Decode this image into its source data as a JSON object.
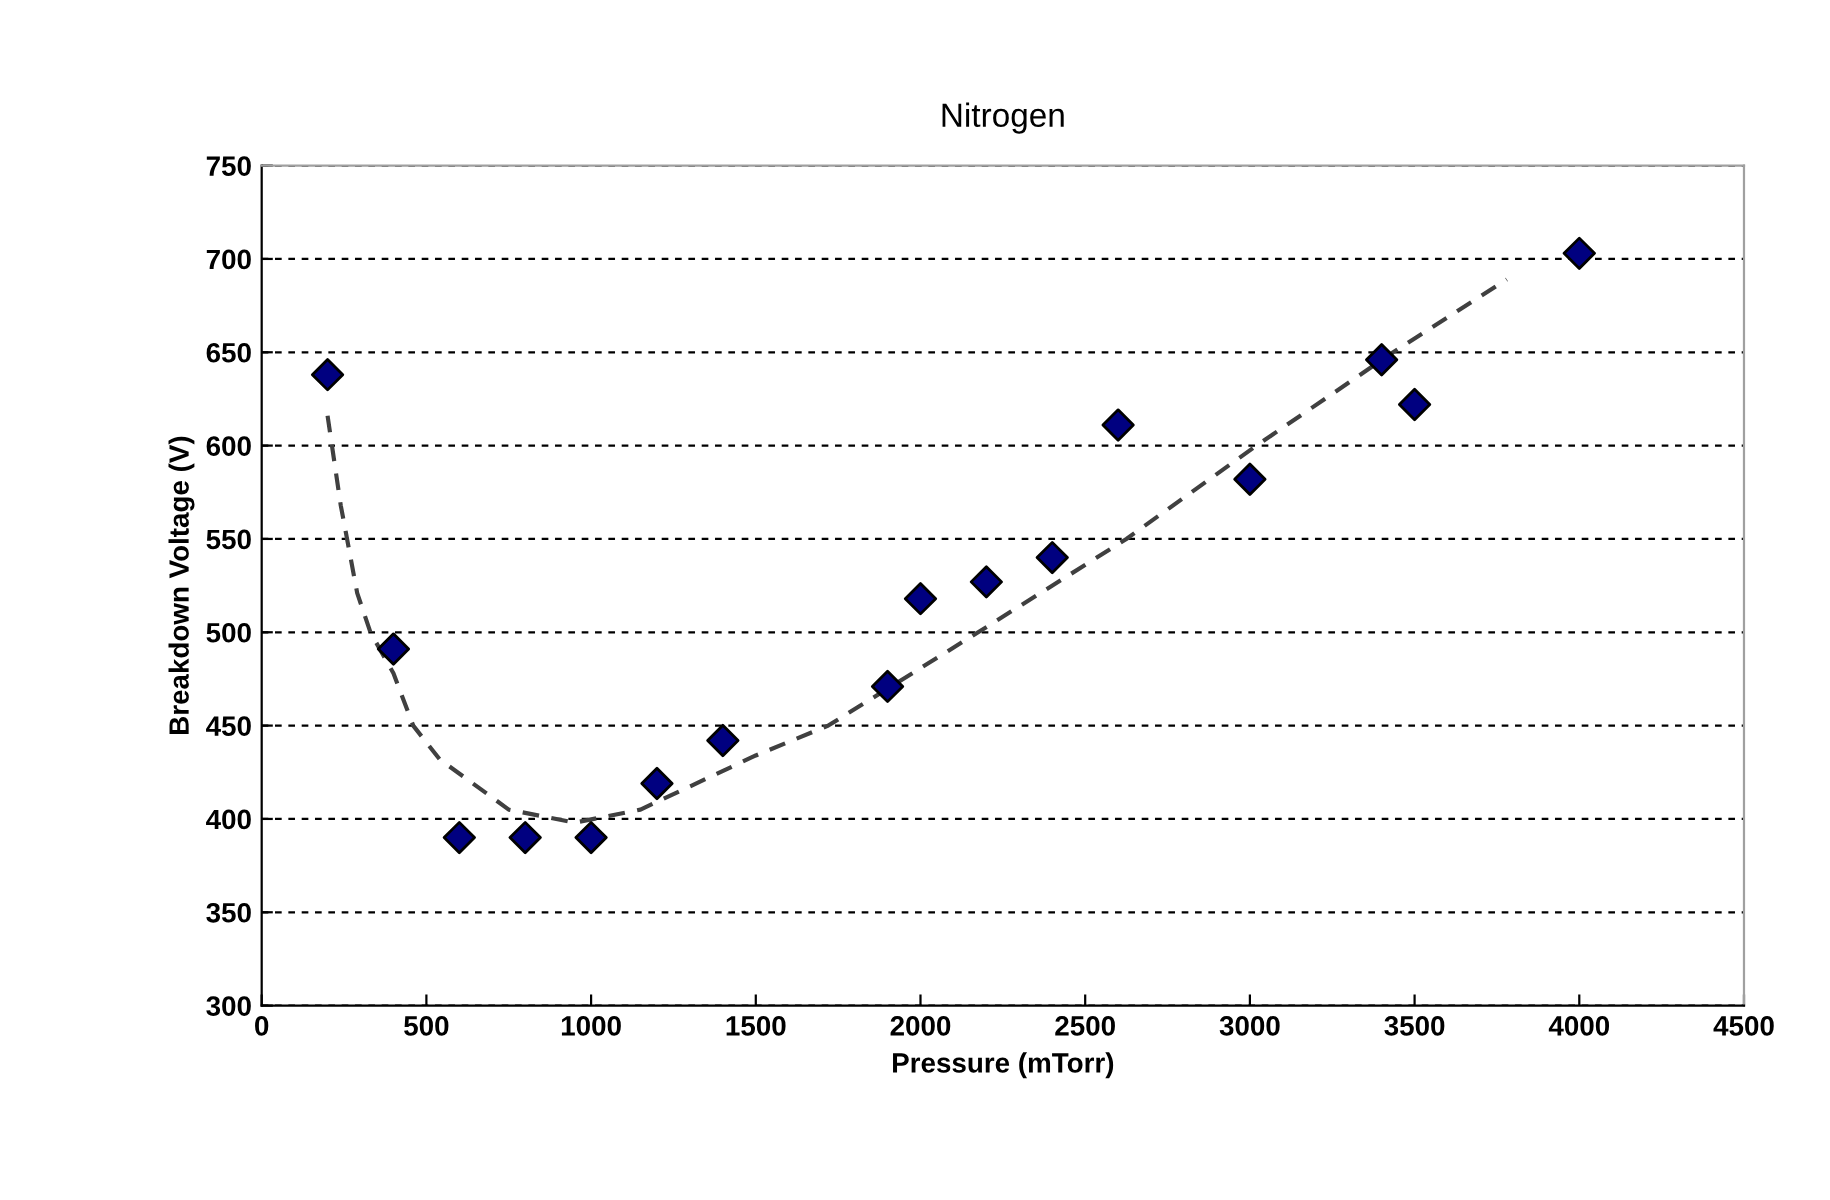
{
  "chart_data": {
    "type": "scatter",
    "title": "Nitrogen",
    "xlabel": "Pressure (mTorr)",
    "ylabel": "Breakdown Voltage (V)",
    "xlim": [
      0,
      4500
    ],
    "xticks": [
      0,
      500,
      1000,
      1500,
      2000,
      2500,
      3000,
      3500,
      4000,
      4500
    ],
    "ylim": [
      300,
      750
    ],
    "yticks": [
      300,
      350,
      400,
      450,
      500,
      550,
      600,
      650,
      700,
      750
    ],
    "grid": "y",
    "marker": "diamond",
    "series": [
      {
        "color": "#000080",
        "x": [
          200,
          400,
          600,
          800,
          1000,
          1200,
          1400,
          1900,
          2000,
          2200,
          2400,
          2600,
          3000,
          3400,
          3500,
          4000
        ],
        "values": [
          638,
          491,
          390,
          390,
          390,
          419,
          442,
          471,
          518,
          527,
          540,
          611,
          582,
          646,
          622,
          703
        ]
      },
      {
        "type": "line",
        "color": "#404040",
        "line_style": "dashed",
        "marker": "none",
        "x": [
          200,
          240,
          290,
          330,
          400,
          460,
          540,
          750,
          950,
          1150,
          1500,
          1720,
          2175,
          2625,
          3020,
          3435,
          3780
        ],
        "values": [
          616,
          568,
          521,
          500,
          478,
          450,
          432,
          405,
          398,
          405,
          434,
          450,
          500,
          550,
          600,
          650,
          689
        ]
      }
    ]
  }
}
